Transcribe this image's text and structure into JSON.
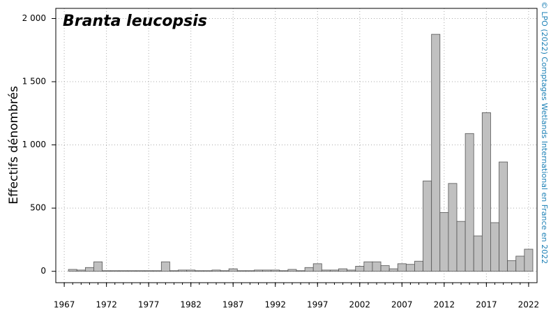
{
  "chart_data": {
    "type": "bar",
    "title": "Branta leucopsis",
    "ylabel": "Effectifs dénombrés",
    "annotation": "© LPO (2022) Comptages Wetlands International en France en 2022",
    "color": "#c0c0c0",
    "x": [
      1967,
      1968,
      1969,
      1970,
      1971,
      1972,
      1973,
      1974,
      1975,
      1976,
      1977,
      1978,
      1979,
      1980,
      1981,
      1982,
      1983,
      1984,
      1985,
      1986,
      1987,
      1988,
      1989,
      1990,
      1991,
      1992,
      1993,
      1994,
      1995,
      1996,
      1997,
      1998,
      1999,
      2000,
      2001,
      2002,
      2003,
      2004,
      2005,
      2006,
      2007,
      2008,
      2009,
      2010,
      2011,
      2012,
      2013,
      2014,
      2015,
      2016,
      2017,
      2018,
      2019,
      2020,
      2021,
      2022
    ],
    "values": [
      0,
      15,
      10,
      30,
      75,
      5,
      5,
      5,
      5,
      5,
      5,
      5,
      75,
      5,
      10,
      10,
      5,
      5,
      10,
      5,
      20,
      5,
      5,
      10,
      10,
      10,
      5,
      15,
      5,
      30,
      60,
      10,
      10,
      20,
      10,
      40,
      75,
      75,
      45,
      20,
      60,
      55,
      80,
      715,
      1875,
      465,
      695,
      395,
      1090,
      280,
      1255,
      385,
      865,
      85,
      120,
      175
    ],
    "xlim": [
      1966,
      2023
    ],
    "xticks": [
      1967,
      1972,
      1977,
      1982,
      1987,
      1992,
      1997,
      2002,
      2007,
      2012,
      2017,
      2022
    ],
    "ylim": [
      -90,
      2080
    ],
    "yticks": [
      0,
      500,
      {
        "value": 1000,
        "label": "1 000"
      },
      {
        "value": 1500,
        "label": "1 500"
      },
      {
        "value": 2000,
        "label": "2 000"
      }
    ],
    "grid": true
  }
}
